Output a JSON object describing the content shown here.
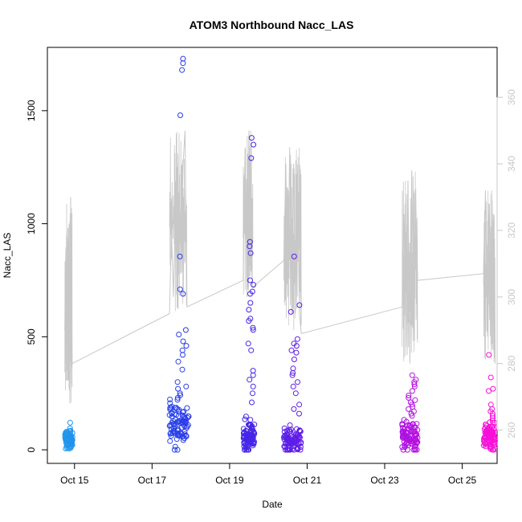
{
  "chart_data": {
    "type": "scatter",
    "title": "ATOM3 Northbound Nacc_LAS",
    "xlabel": "Date",
    "ylabel": "Nacc_LAS",
    "x_range_days": [
      14.3,
      25.9
    ],
    "xlim_label_note": "",
    "ylim": [
      -60,
      1780
    ],
    "y_ticks": [
      0,
      500,
      1000,
      1500
    ],
    "y_tick_labels": [
      "0",
      "500",
      "1000",
      "1500"
    ],
    "x_ticks": [
      15,
      17,
      19,
      21,
      23,
      25
    ],
    "x_tick_labels": [
      "Oct 15",
      "Oct 17",
      "Oct 19",
      "Oct 21",
      "Oct 23",
      "Oct 25"
    ],
    "y2lim": [
      250,
      375
    ],
    "y2_ticks": [
      260,
      280,
      300,
      320,
      340,
      360
    ],
    "y2_tick_labels": [
      "260",
      "280",
      "300",
      "320",
      "340",
      "360"
    ],
    "grid": false,
    "legend": "none",
    "point_color_gradient": [
      "#1fa5ee",
      "#2b31e8",
      "#7a12e8",
      "#ff10d8"
    ],
    "line_color": "#c8c8c8",
    "scatter_groups": [
      {
        "day_start": 14.75,
        "day_end": 14.95,
        "median": 45,
        "spread": 25,
        "outliers": [
          120,
          95,
          85,
          10,
          5
        ]
      },
      {
        "day_start": 17.45,
        "day_end": 17.95,
        "median": 110,
        "spread": 70,
        "outliers": [
          1730,
          1710,
          1680,
          1480,
          855,
          710,
          690,
          530,
          510,
          480,
          460,
          440,
          420,
          390,
          355,
          300,
          280,
          270,
          250,
          230
        ]
      },
      {
        "day_start": 19.35,
        "day_end": 19.65,
        "median": 60,
        "spread": 50,
        "outliers": [
          1380,
          1350,
          1290,
          920,
          900,
          870,
          750,
          730,
          700,
          690,
          650,
          620,
          580,
          570,
          540,
          530,
          470,
          440,
          350,
          330,
          310,
          280,
          250,
          210
        ]
      },
      {
        "day_start": 20.4,
        "day_end": 20.85,
        "median": 40,
        "spread": 40,
        "outliers": [
          855,
          640,
          610,
          490,
          470,
          460,
          440,
          430,
          400,
          360,
          340,
          330,
          300,
          280,
          250,
          200,
          180,
          160
        ]
      },
      {
        "day_start": 23.45,
        "day_end": 23.85,
        "median": 60,
        "spread": 50,
        "outliers": [
          330,
          310,
          300,
          290,
          280,
          260,
          240,
          230,
          220,
          210,
          200,
          190,
          180,
          170,
          160,
          150
        ]
      },
      {
        "day_start": 25.55,
        "day_end": 25.85,
        "median": 60,
        "spread": 45,
        "outliers": [
          420,
          320,
          270,
          260,
          200,
          180,
          170,
          160,
          150,
          140,
          130,
          120
        ]
      }
    ],
    "secondary_line": {
      "segments": [
        {
          "t": [
            14.75,
            14.78,
            14.8,
            14.82,
            14.84,
            14.86,
            14.88,
            14.9,
            14.92,
            14.94
          ],
          "v": [
            290,
            315,
            292,
            318,
            275,
            322,
            268,
            330,
            300,
            280
          ]
        },
        {
          "t": [
            14.94,
            17.45
          ],
          "v": [
            280,
            295
          ]
        },
        {
          "t": [
            17.45,
            17.5,
            17.55,
            17.6,
            17.65,
            17.7,
            17.75,
            17.8,
            17.85,
            17.9
          ],
          "v": [
            295,
            320,
            300,
            325,
            305,
            330,
            310,
            340,
            350,
            297
          ]
        },
        {
          "t": [
            17.9,
            19.35
          ],
          "v": [
            297,
            305
          ]
        },
        {
          "t": [
            19.35,
            19.4,
            19.45,
            19.5,
            19.55,
            19.6
          ],
          "v": [
            305,
            345,
            300,
            350,
            310,
            303
          ]
        },
        {
          "t": [
            19.6,
            20.4
          ],
          "v": [
            303,
            311
          ]
        },
        {
          "t": [
            20.4,
            20.45,
            20.5,
            20.55,
            20.6,
            20.65,
            20.7,
            20.75,
            20.8,
            20.85
          ],
          "v": [
            311,
            340,
            300,
            345,
            295,
            340,
            300,
            335,
            295,
            289
          ]
        },
        {
          "t": [
            20.85,
            23.45
          ],
          "v": [
            289,
            297
          ]
        },
        {
          "t": [
            23.45,
            23.5,
            23.55,
            23.6,
            23.65,
            23.7,
            23.75,
            23.8,
            23.85
          ],
          "v": [
            297,
            325,
            285,
            335,
            280,
            338,
            290,
            330,
            305
          ]
        },
        {
          "t": [
            23.85,
            25.55
          ],
          "v": [
            305,
            307
          ]
        },
        {
          "t": [
            25.55,
            25.6,
            25.65,
            25.7,
            25.75,
            25.8,
            25.85
          ],
          "v": [
            307,
            332,
            290,
            328,
            285,
            325,
            280
          ]
        }
      ]
    }
  }
}
